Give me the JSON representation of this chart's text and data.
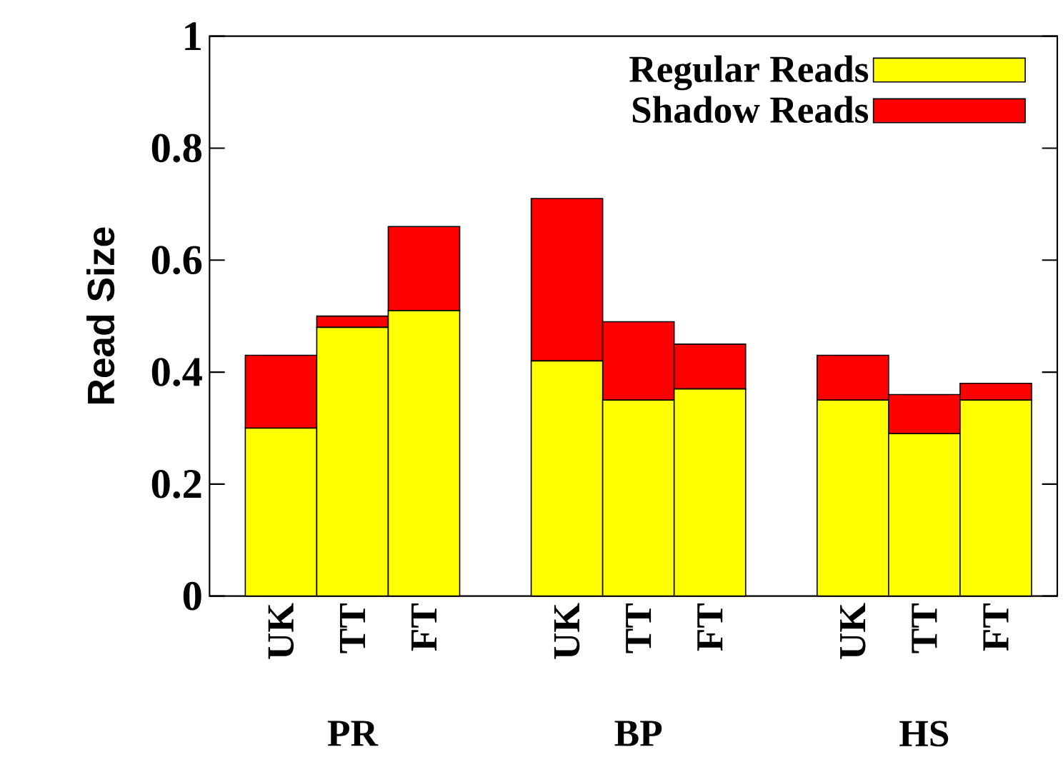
{
  "chart_data": {
    "type": "bar",
    "stacked": true,
    "ylabel": "Read Size",
    "categories": [
      "UK",
      "TT",
      "FT",
      null,
      "UK",
      "TT",
      "FT",
      null,
      "UK",
      "TT",
      "FT"
    ],
    "series": [
      {
        "name": "Regular Reads",
        "color": "#ffff00",
        "values": [
          0.3,
          0.48,
          0.51,
          null,
          0.42,
          0.35,
          0.37,
          null,
          0.35,
          0.29,
          0.35
        ]
      },
      {
        "name": "Shadow Reads",
        "color": "#ff0000",
        "values": [
          0.13,
          0.02,
          0.15,
          null,
          0.29,
          0.14,
          0.08,
          null,
          0.08,
          0.07,
          0.03
        ]
      }
    ],
    "annotations": [
      "PR",
      "BP",
      "HS"
    ],
    "ylim": [
      0,
      1
    ],
    "yticks": [
      0,
      0.2,
      0.4,
      0.6,
      0.8,
      1
    ],
    "grid": false,
    "legend": "top right"
  }
}
